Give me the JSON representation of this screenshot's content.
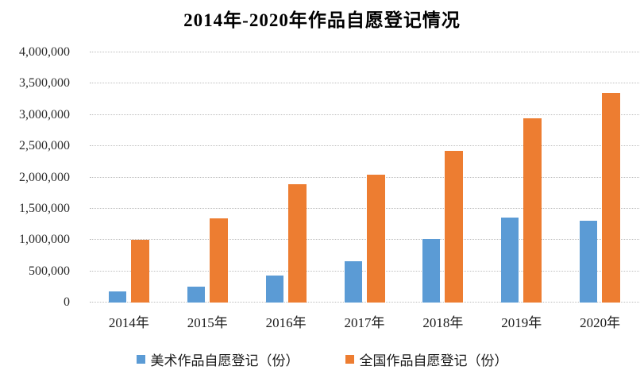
{
  "title": "2014年-2020年作品自愿登记情况",
  "colors": {
    "series_art_blue": "#5B9BD5",
    "series_national_orange": "#ED7D31",
    "gridline": "#BFBFBF",
    "axis_text": "#2B2B2B",
    "title_text": "#000000",
    "background": "#FFFFFF"
  },
  "chart_data": {
    "type": "bar",
    "title": "2014年-2020年作品自愿登记情况",
    "categories": [
      "2014年",
      "2015年",
      "2016年",
      "2017年",
      "2018年",
      "2019年",
      "2020年"
    ],
    "series": [
      {
        "name": "美术作品自愿登记（份）",
        "color": "#5B9BD5",
        "values": [
          180000,
          260000,
          430000,
          660000,
          1010000,
          1360000,
          1310000
        ]
      },
      {
        "name": "全国作品自愿登记（份）",
        "color": "#ED7D31",
        "values": [
          1000000,
          1340000,
          1890000,
          2050000,
          2430000,
          2940000,
          3350000
        ]
      }
    ],
    "xlabel": "",
    "ylabel": "",
    "ylim": [
      0,
      4000000
    ],
    "ytick_step": 500000,
    "ytick_labels": [
      "0",
      "500,000",
      "1,000,000",
      "1,500,000",
      "2,000,000",
      "2,500,000",
      "3,000,000",
      "3,500,000",
      "4,000,000"
    ],
    "grid": true,
    "legend_position": "bottom"
  }
}
